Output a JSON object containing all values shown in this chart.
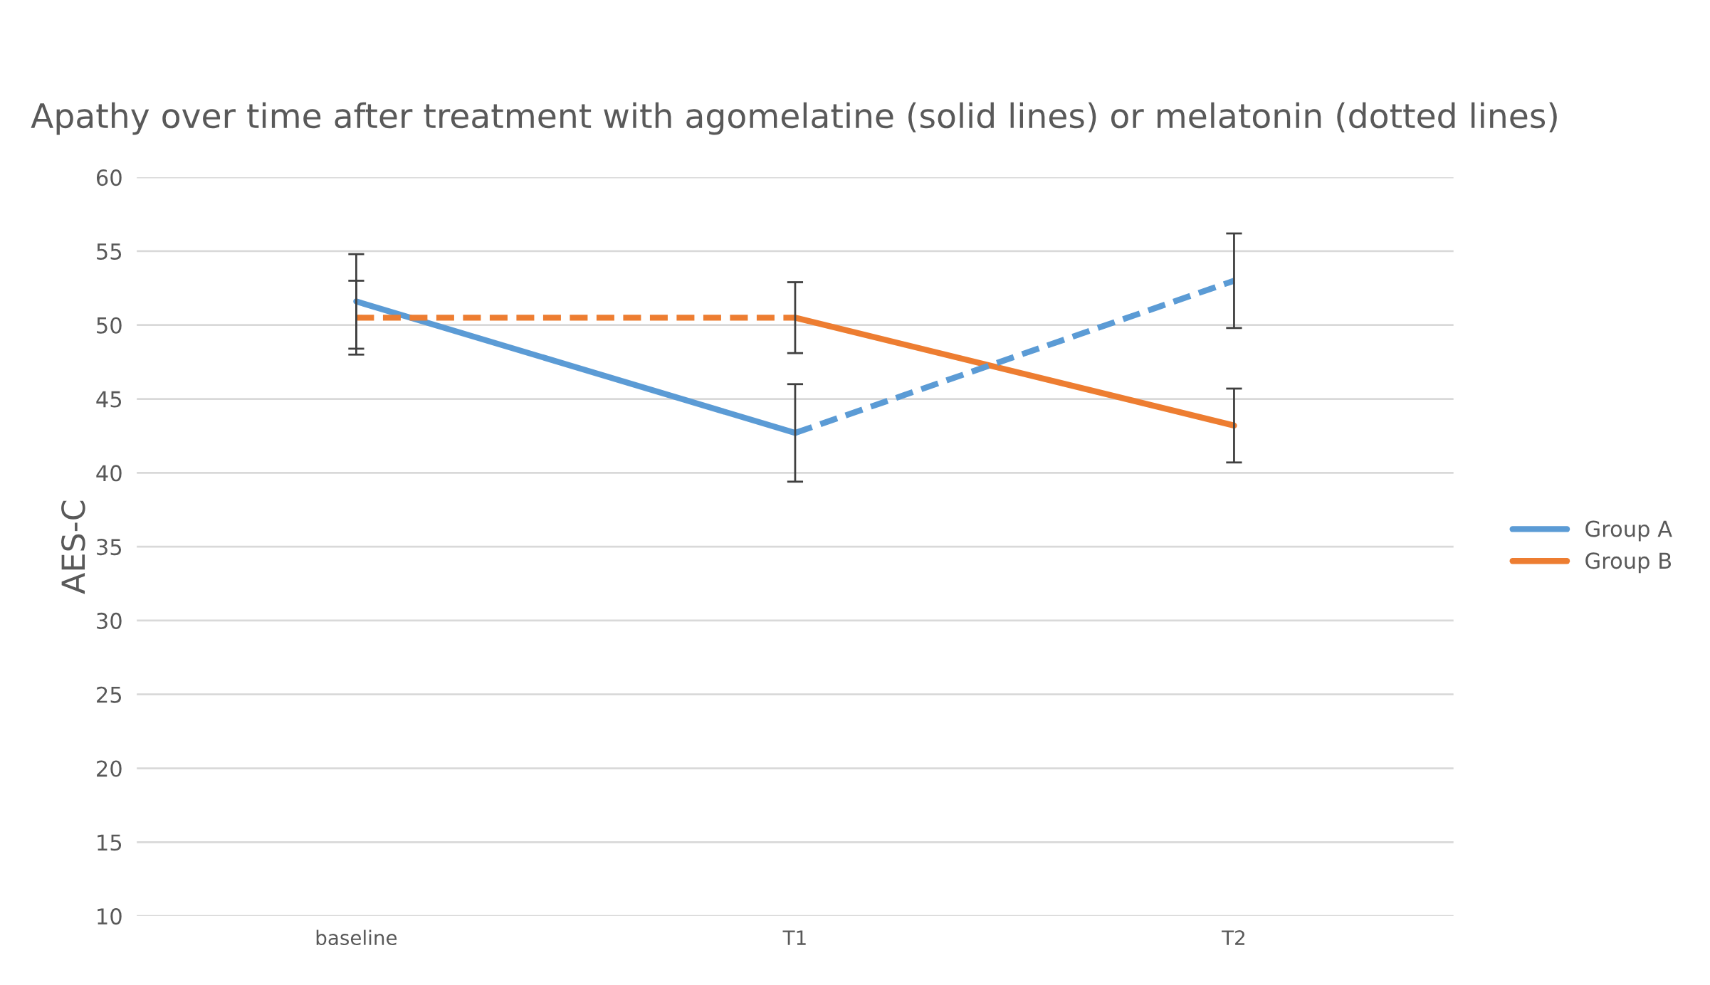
{
  "chart_data": {
    "type": "line",
    "title": "Apathy over time after treatment with agomelatine (solid lines) or melatonin (dotted lines)",
    "ylabel": "AES-C",
    "categories": [
      "baseline",
      "T1",
      "T2"
    ],
    "series": [
      {
        "name": "Group A",
        "color": "#5b9bd5",
        "line_style": "solid",
        "values": [
          51.6,
          42.7,
          null
        ],
        "errors": [
          3.2,
          3.3,
          null
        ]
      },
      {
        "name": "Group B",
        "color": "#ed7d31",
        "line_style": "solid",
        "values": [
          null,
          50.5,
          43.2
        ],
        "errors": [
          null,
          2.4,
          2.5
        ]
      },
      {
        "color": "#5b9bd5",
        "line_style": "dashed",
        "values": [
          null,
          42.7,
          53.0
        ],
        "errors": [
          null,
          null,
          3.2
        ]
      },
      {
        "color": "#ed7d31",
        "line_style": "dashed",
        "values": [
          50.5,
          50.5,
          null
        ],
        "errors": [
          2.5,
          null,
          null
        ]
      }
    ],
    "ylim": [
      10,
      60
    ],
    "yticks": [
      10,
      15,
      20,
      25,
      30,
      35,
      40,
      45,
      50,
      55,
      60
    ],
    "grid": "y",
    "legend": "right",
    "marker": "none"
  }
}
